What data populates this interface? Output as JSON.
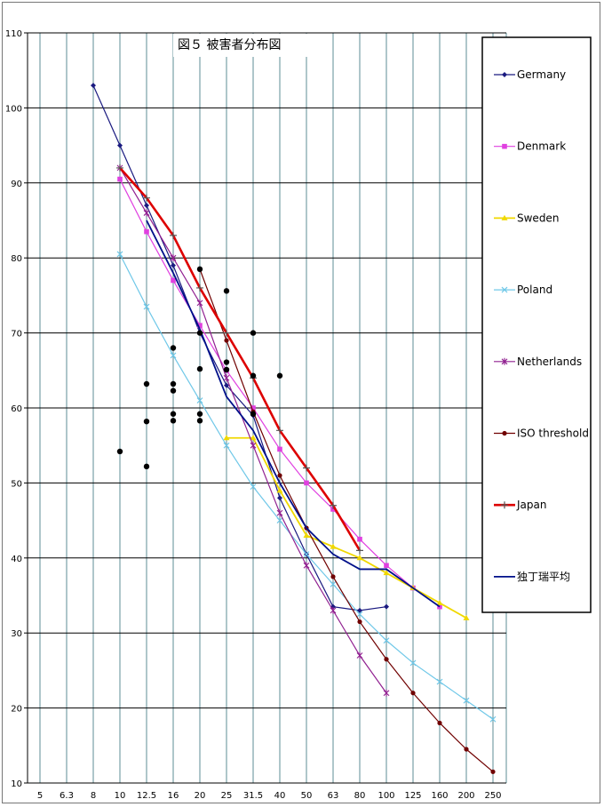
{
  "chart_data": {
    "type": "line",
    "title": "図５ 被害者分布図",
    "xlabel": "",
    "ylabel": "",
    "x_scale": "categorical",
    "categories": [
      "5",
      "6.3",
      "8",
      "10",
      "12.5",
      "16",
      "20",
      "25",
      "31.5",
      "40",
      "50",
      "63",
      "80",
      "100",
      "125",
      "160",
      "200",
      "250"
    ],
    "y_ticks": [
      "10",
      "20",
      "30",
      "40",
      "50",
      "60",
      "70",
      "80",
      "90",
      "100",
      "110"
    ],
    "ylim": [
      10,
      110
    ],
    "grid": true,
    "legend_position": "right",
    "series": [
      {
        "name": "Germany",
        "color": "#1a1a80",
        "marker": "diamond",
        "x": [
          "8",
          "10",
          "12.5",
          "16",
          "20",
          "25",
          "31.5",
          "40",
          "50",
          "63",
          "80",
          "100"
        ],
        "values": [
          103,
          95,
          87,
          79,
          70,
          63,
          59,
          48,
          40.5,
          33.5,
          33,
          33.5
        ]
      },
      {
        "name": "Denmark",
        "color": "#e040e0",
        "marker": "square",
        "x": [
          "10",
          "12.5",
          "16",
          "20",
          "25",
          "31.5",
          "40",
          "50",
          "63",
          "80",
          "100",
          "125",
          "160"
        ],
        "values": [
          90.5,
          83.5,
          77,
          71,
          65,
          60,
          54.5,
          50,
          46.5,
          42.5,
          39,
          36,
          33.5
        ]
      },
      {
        "name": "Sweden",
        "color": "#f0d800",
        "marker": "triangle",
        "x": [
          "25",
          "31.5",
          "40",
          "50",
          "63",
          "80",
          "100",
          "125",
          "160",
          "200"
        ],
        "values": [
          56,
          56,
          49,
          43,
          41.5,
          40,
          38,
          36,
          34,
          32
        ]
      },
      {
        "name": "Poland",
        "color": "#70c8e8",
        "marker": "x",
        "x": [
          "10",
          "12.5",
          "16",
          "20",
          "25",
          "31.5",
          "40",
          "50",
          "63",
          "80",
          "100",
          "125",
          "160",
          "200",
          "250"
        ],
        "values": [
          80.5,
          73.5,
          67,
          61,
          55,
          49.5,
          45,
          40.5,
          36.5,
          32.5,
          29,
          26,
          23.5,
          21,
          18.5
        ]
      },
      {
        "name": "Netherlands",
        "color": "#902090",
        "marker": "asterisk",
        "x": [
          "10",
          "12.5",
          "16",
          "20",
          "25",
          "31.5",
          "40",
          "50",
          "63",
          "80",
          "100"
        ],
        "values": [
          92,
          86,
          80,
          74,
          64,
          55,
          46,
          39,
          33,
          27,
          22
        ]
      },
      {
        "name": "ISO threshold",
        "color": "#700000",
        "marker": "circle",
        "x": [
          "20",
          "25",
          "31.5",
          "40",
          "50",
          "63",
          "80",
          "100",
          "125",
          "160",
          "200",
          "250"
        ],
        "values": [
          78.5,
          69,
          59.5,
          51,
          44,
          37.5,
          31.5,
          26.5,
          22,
          18,
          14.5,
          11.5
        ]
      },
      {
        "name": "Japan",
        "color": "#dd0000",
        "marker": "plus",
        "x": [
          "10",
          "12.5",
          "16",
          "20",
          "25",
          "31.5",
          "40",
          "50",
          "63",
          "80"
        ],
        "values": [
          92,
          88,
          83,
          76,
          70,
          64,
          57,
          52,
          47,
          41
        ]
      },
      {
        "name": "独丁瑞平均",
        "color": "#00108a",
        "marker": "none",
        "x": [
          "12.5",
          "16",
          "20",
          "25",
          "31.5",
          "40",
          "50",
          "63",
          "80",
          "100",
          "125",
          "160"
        ],
        "values": [
          85,
          78,
          70.5,
          61.5,
          57,
          50,
          44,
          40.5,
          38.5,
          38.5,
          36,
          33.5
        ]
      }
    ],
    "scatter_points": {
      "color": "#000000",
      "points": [
        {
          "x": "10",
          "y": 54.2
        },
        {
          "x": "12.5",
          "y": 63.2
        },
        {
          "x": "12.5",
          "y": 58.2
        },
        {
          "x": "12.5",
          "y": 52.2
        },
        {
          "x": "16",
          "y": 68
        },
        {
          "x": "16",
          "y": 63.2
        },
        {
          "x": "16",
          "y": 62.3
        },
        {
          "x": "16",
          "y": 59.2
        },
        {
          "x": "16",
          "y": 58.3
        },
        {
          "x": "20",
          "y": 78.5
        },
        {
          "x": "20",
          "y": 70
        },
        {
          "x": "20",
          "y": 65.2
        },
        {
          "x": "20",
          "y": 59.2
        },
        {
          "x": "20",
          "y": 58.3
        },
        {
          "x": "25",
          "y": 75.6
        },
        {
          "x": "25",
          "y": 66.1
        },
        {
          "x": "25",
          "y": 65.1
        },
        {
          "x": "31.5",
          "y": 70
        },
        {
          "x": "31.5",
          "y": 64.3
        },
        {
          "x": "31.5",
          "y": 59.2
        },
        {
          "x": "40",
          "y": 64.3
        }
      ]
    }
  }
}
